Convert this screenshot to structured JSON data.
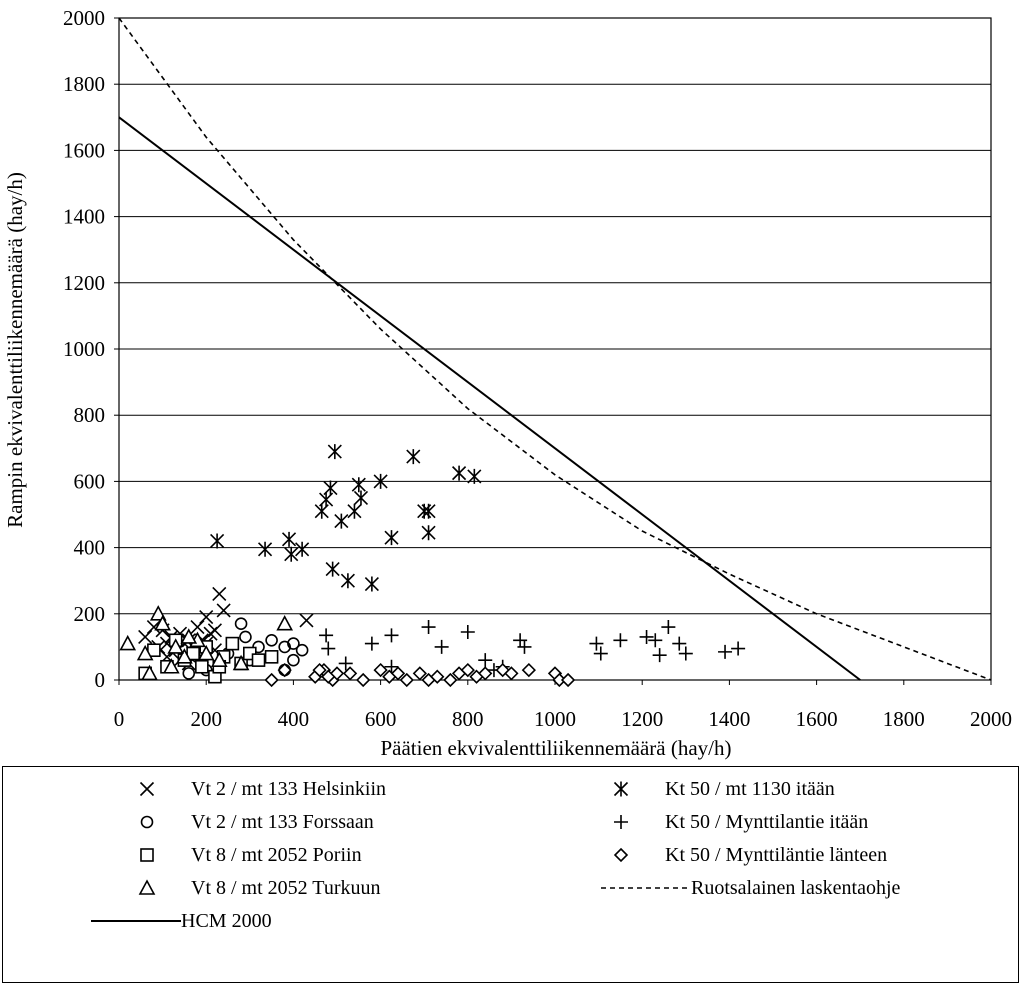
{
  "chart_data": {
    "type": "scatter",
    "xlabel": "Päätien ekvivalenttiliikennemäärä (hay/h)",
    "ylabel": "Rampin ekvivalenttiliikennemäärä (hay/h)",
    "xlim": [
      0,
      2000
    ],
    "ylim": [
      0,
      2000
    ],
    "x_ticks": [
      "0",
      "200",
      "400",
      "600",
      "800",
      "1000",
      "1200",
      "1400",
      "1600",
      "1800",
      "2000"
    ],
    "y_ticks": [
      "0",
      "200",
      "400",
      "600",
      "800",
      "1000",
      "1200",
      "1400",
      "1600",
      "1800",
      "2000"
    ],
    "grid": "horizontal",
    "legend_position": "bottom",
    "series": [
      {
        "name": "Vt 2 / mt 133 Helsinkiin",
        "marker": "x",
        "points": [
          [
            60,
            130
          ],
          [
            80,
            160
          ],
          [
            100,
            150
          ],
          [
            110,
            110
          ],
          [
            120,
            130
          ],
          [
            130,
            90
          ],
          [
            140,
            140
          ],
          [
            150,
            110
          ],
          [
            160,
            120
          ],
          [
            170,
            100
          ],
          [
            180,
            160
          ],
          [
            190,
            120
          ],
          [
            200,
            190
          ],
          [
            210,
            140
          ],
          [
            220,
            90
          ],
          [
            230,
            260
          ],
          [
            240,
            210
          ],
          [
            110,
            70
          ],
          [
            140,
            60
          ],
          [
            170,
            80
          ],
          [
            190,
            70
          ],
          [
            160,
            50
          ],
          [
            200,
            110
          ],
          [
            220,
            150
          ],
          [
            90,
            100
          ],
          [
            430,
            180
          ]
        ]
      },
      {
        "name": "Vt 2 / mt 133 Forssaan",
        "marker": "circle",
        "points": [
          [
            160,
            20
          ],
          [
            200,
            30
          ],
          [
            280,
            170
          ],
          [
            290,
            130
          ],
          [
            320,
            100
          ],
          [
            350,
            120
          ],
          [
            380,
            100
          ],
          [
            400,
            110
          ],
          [
            420,
            90
          ],
          [
            400,
            60
          ],
          [
            380,
            30
          ],
          [
            300,
            60
          ],
          [
            250,
            80
          ],
          [
            180,
            70
          ]
        ]
      },
      {
        "name": "Vt 8 / mt 2052 Poriin",
        "marker": "square",
        "points": [
          [
            60,
            20
          ],
          [
            80,
            90
          ],
          [
            110,
            40
          ],
          [
            130,
            120
          ],
          [
            150,
            60
          ],
          [
            170,
            80
          ],
          [
            200,
            100
          ],
          [
            220,
            10
          ],
          [
            240,
            70
          ],
          [
            260,
            110
          ],
          [
            280,
            50
          ],
          [
            300,
            80
          ],
          [
            320,
            60
          ],
          [
            350,
            70
          ],
          [
            190,
            40
          ],
          [
            230,
            40
          ]
        ]
      },
      {
        "name": "Vt 8 / mt 2052 Turkuun",
        "marker": "triangle",
        "points": [
          [
            20,
            110
          ],
          [
            60,
            80
          ],
          [
            70,
            20
          ],
          [
            90,
            200
          ],
          [
            100,
            170
          ],
          [
            120,
            40
          ],
          [
            150,
            70
          ],
          [
            180,
            120
          ],
          [
            200,
            80
          ],
          [
            230,
            60
          ],
          [
            280,
            50
          ],
          [
            380,
            170
          ],
          [
            130,
            100
          ],
          [
            160,
            130
          ]
        ]
      },
      {
        "name": "Kt 50 / mt 1130 itään",
        "marker": "asterisk",
        "points": [
          [
            225,
            420
          ],
          [
            335,
            395
          ],
          [
            390,
            425
          ],
          [
            395,
            380
          ],
          [
            420,
            395
          ],
          [
            465,
            510
          ],
          [
            475,
            545
          ],
          [
            485,
            580
          ],
          [
            490,
            335
          ],
          [
            495,
            690
          ],
          [
            510,
            480
          ],
          [
            525,
            300
          ],
          [
            540,
            510
          ],
          [
            550,
            590
          ],
          [
            555,
            550
          ],
          [
            580,
            290
          ],
          [
            600,
            600
          ],
          [
            625,
            430
          ],
          [
            675,
            675
          ],
          [
            700,
            510
          ],
          [
            710,
            510
          ],
          [
            710,
            445
          ],
          [
            780,
            625
          ],
          [
            815,
            615
          ]
        ]
      },
      {
        "name": "Kt 50 / Mynttilantie itään",
        "marker": "plus",
        "points": [
          [
            475,
            135
          ],
          [
            480,
            95
          ],
          [
            580,
            110
          ],
          [
            625,
            135
          ],
          [
            710,
            160
          ],
          [
            740,
            100
          ],
          [
            800,
            145
          ],
          [
            840,
            60
          ],
          [
            860,
            30
          ],
          [
            880,
            40
          ],
          [
            920,
            120
          ],
          [
            930,
            100
          ],
          [
            1095,
            110
          ],
          [
            1105,
            80
          ],
          [
            1150,
            120
          ],
          [
            1210,
            130
          ],
          [
            1230,
            120
          ],
          [
            1240,
            75
          ],
          [
            1260,
            160
          ],
          [
            1285,
            110
          ],
          [
            1300,
            80
          ],
          [
            1390,
            85
          ],
          [
            1420,
            95
          ],
          [
            625,
            40
          ],
          [
            520,
            50
          ]
        ]
      },
      {
        "name": "Kt 50 / Mynttiläntie länteen",
        "marker": "diamond",
        "points": [
          [
            350,
            0
          ],
          [
            380,
            30
          ],
          [
            450,
            10
          ],
          [
            470,
            30
          ],
          [
            490,
            0
          ],
          [
            500,
            20
          ],
          [
            530,
            20
          ],
          [
            560,
            0
          ],
          [
            600,
            30
          ],
          [
            620,
            10
          ],
          [
            640,
            20
          ],
          [
            660,
            0
          ],
          [
            690,
            20
          ],
          [
            710,
            0
          ],
          [
            730,
            10
          ],
          [
            760,
            0
          ],
          [
            780,
            20
          ],
          [
            800,
            30
          ],
          [
            820,
            10
          ],
          [
            840,
            20
          ],
          [
            880,
            30
          ],
          [
            900,
            20
          ],
          [
            940,
            30
          ],
          [
            1000,
            20
          ],
          [
            1010,
            0
          ],
          [
            1030,
            0
          ],
          [
            460,
            30
          ],
          [
            480,
            10
          ]
        ]
      },
      {
        "name": "Ruotsalainen laskentaohje",
        "marker": "dashed-line",
        "curve": [
          [
            0,
            2000
          ],
          [
            200,
            1640
          ],
          [
            400,
            1330
          ],
          [
            600,
            1060
          ],
          [
            800,
            820
          ],
          [
            1000,
            620
          ],
          [
            1200,
            450
          ],
          [
            1400,
            320
          ],
          [
            1600,
            200
          ],
          [
            1800,
            100
          ],
          [
            2000,
            0
          ]
        ]
      },
      {
        "name": "HCM 2000",
        "marker": "solid-line",
        "curve": [
          [
            0,
            1700
          ],
          [
            1700,
            0
          ]
        ]
      }
    ]
  }
}
